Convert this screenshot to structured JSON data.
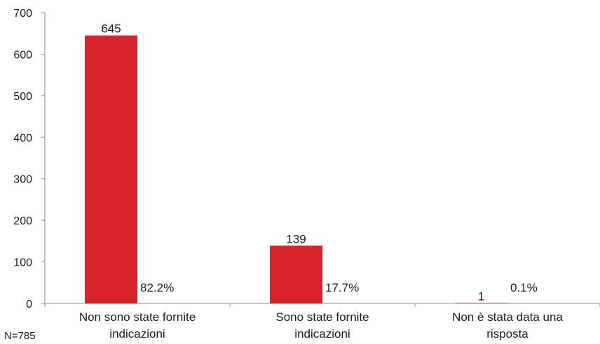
{
  "chart_data": {
    "type": "bar",
    "categories": [
      [
        "Non sono state fornite",
        "indicazioni"
      ],
      [
        "Sono state fornite",
        "indicazioni"
      ],
      [
        "Non è stata data una",
        "risposta"
      ]
    ],
    "values": [
      645,
      139,
      1
    ],
    "percent_labels": [
      "82.2%",
      "17.7%",
      "0.1%"
    ],
    "ylim": [
      0,
      700
    ],
    "yticks": [
      0,
      100,
      200,
      300,
      400,
      500,
      600,
      700
    ],
    "bar_color": "#d9232a",
    "grid": false,
    "legend": "none"
  },
  "footnote": "N=785"
}
